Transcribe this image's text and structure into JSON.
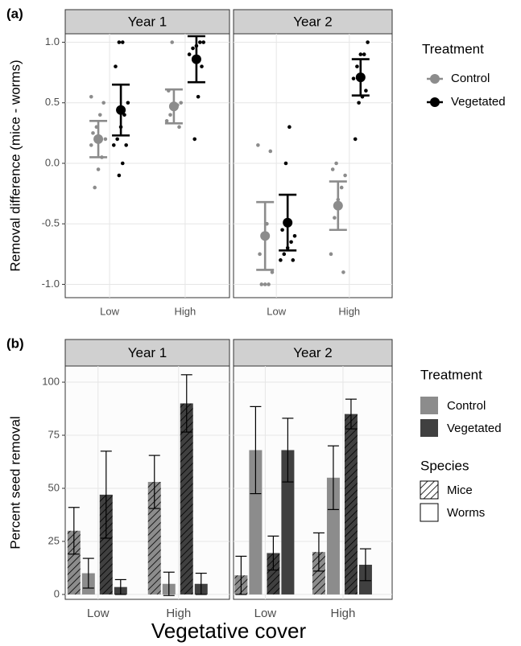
{
  "chart_data": [
    {
      "type": "pointrange",
      "panel_label": "(a)",
      "y_label": "Removal difference (mice - worms)",
      "facets": [
        "Year 1",
        "Year 2"
      ],
      "categories": [
        "Low",
        "High"
      ],
      "legend_title": "Treatment",
      "ylim": [
        -1.11,
        1.07
      ],
      "yticks": [
        {
          "value": -1,
          "label": "-1.0"
        },
        {
          "value": -0.5,
          "label": "-0.5"
        },
        {
          "value": 0,
          "label": "0.0"
        },
        {
          "value": 0.5,
          "label": "0.5"
        },
        {
          "value": 1,
          "label": "1.0"
        }
      ],
      "grid": true,
      "series": [
        {
          "name": "Control",
          "color": "#8c8c8c",
          "values": [
            [
              0.2,
              0.47
            ],
            [
              -0.6,
              -0.35
            ]
          ],
          "errors": [
            [
              0.15,
              0.14
            ],
            [
              0.28,
              0.2
            ]
          ],
          "points": [
            [
              [
                0.55,
                0.5,
                0.4,
                0.3,
                0.25,
                0.2,
                0.05,
                -0.05,
                -0.2,
                0.15
              ],
              [
                1.0,
                0.6,
                0.5,
                0.48,
                0.45,
                0.4,
                0.35,
                0.3
              ]
            ],
            [
              [
                0.15,
                0.1,
                -0.5,
                -0.6,
                -0.75,
                -0.9,
                -1.0,
                -1.0,
                -1.0
              ],
              [
                0.0,
                -0.05,
                -0.1,
                -0.2,
                -0.3,
                -0.45,
                -0.75,
                -0.9
              ]
            ]
          ]
        },
        {
          "name": "Vegetated",
          "color": "#000000",
          "values": [
            [
              0.44,
              0.86
            ],
            [
              -0.49,
              0.71
            ]
          ],
          "errors": [
            [
              0.21,
              0.19
            ],
            [
              0.23,
              0.15
            ]
          ],
          "points": [
            [
              [
                1.0,
                1.0,
                0.8,
                0.5,
                0.4,
                0.3,
                0.2,
                0.15,
                0.15,
                0.0,
                -0.1
              ],
              [
                1.0,
                1.0,
                0.97,
                0.95,
                0.9,
                0.8,
                0.55,
                0.2
              ]
            ],
            [
              [
                0.3,
                0.0,
                -0.55,
                -0.6,
                -0.65,
                -0.7,
                -0.75,
                -0.8,
                -0.8
              ],
              [
                1.0,
                0.9,
                0.9,
                0.8,
                0.7,
                0.6,
                0.55,
                0.5,
                0.2
              ]
            ]
          ]
        }
      ]
    },
    {
      "type": "bar",
      "panel_label": "(b)",
      "y_label": "Percent seed removal",
      "x_label": "Vegetative cover",
      "facets": [
        "Year 1",
        "Year 2"
      ],
      "categories": [
        "Low",
        "High"
      ],
      "legend_title": "Treatment",
      "species_title": "Species",
      "species": [
        {
          "name": "Mice",
          "hatch": true
        },
        {
          "name": "Worms",
          "hatch": false
        }
      ],
      "ylim": [
        -2.3,
        107.6
      ],
      "yticks": [
        0,
        25,
        50,
        75,
        100
      ],
      "grid": true,
      "series": [
        {
          "name": "Control",
          "color": "#8c8c8c",
          "values": [
            [
              [
                30,
                10
              ],
              [
                53,
                5
              ]
            ],
            [
              [
                9,
                68
              ],
              [
                20,
                55
              ]
            ]
          ],
          "errors": [
            [
              [
                11,
                7
              ],
              [
                12.5,
                5.5
              ]
            ],
            [
              [
                9,
                20.5
              ],
              [
                9,
                15
              ]
            ]
          ]
        },
        {
          "name": "Vegetated",
          "color": "#404040",
          "values": [
            [
              [
                47,
                3.5
              ],
              [
                90,
                5
              ]
            ],
            [
              [
                19.5,
                68
              ],
              [
                85,
                14
              ]
            ]
          ],
          "errors": [
            [
              [
                20.5,
                3.5
              ],
              [
                13.5,
                5
              ]
            ],
            [
              [
                8,
                15
              ],
              [
                7,
                7.5
              ]
            ]
          ]
        }
      ]
    }
  ]
}
